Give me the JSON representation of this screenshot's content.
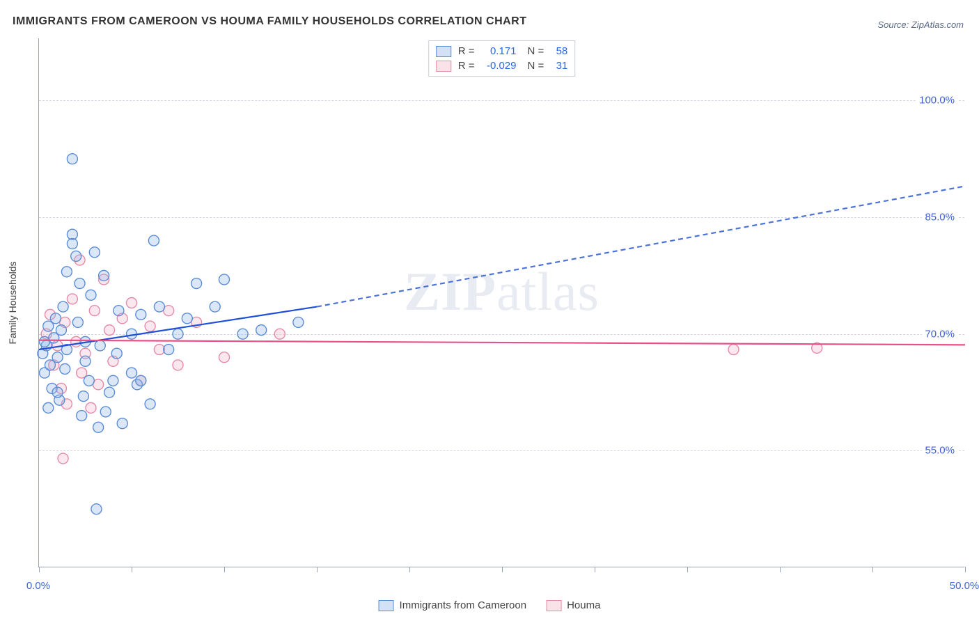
{
  "title": "IMMIGRANTS FROM CAMEROON VS HOUMA FAMILY HOUSEHOLDS CORRELATION CHART",
  "source": "Source: ZipAtlas.com",
  "watermark_bold": "ZIP",
  "watermark_rest": "atlas",
  "chart": {
    "type": "scatter",
    "background_color": "#ffffff",
    "grid_color": "#d2d7df",
    "axis_color": "#9aa4b8",
    "axis_label_color": "#3b63d6",
    "y_axis_title": "Family Households",
    "y_axis_title_fontsize": 14,
    "title_fontsize": 16,
    "xlim": [
      0,
      50
    ],
    "ylim": [
      40,
      108
    ],
    "x_ticks": [
      0,
      5,
      10,
      15,
      20,
      25,
      30,
      35,
      40,
      45,
      50
    ],
    "x_tick_labels": [
      {
        "pos": 0,
        "label": "0.0%"
      },
      {
        "pos": 50,
        "label": "50.0%"
      }
    ],
    "y_grid": [
      55,
      70,
      85,
      100
    ],
    "y_tick_labels": [
      {
        "pos": 55,
        "label": "55.0%"
      },
      {
        "pos": 70,
        "label": "70.0%"
      },
      {
        "pos": 85,
        "label": "85.0%"
      },
      {
        "pos": 100,
        "label": "100.0%"
      }
    ],
    "marker_radius": 7.5,
    "marker_stroke_width": 1.4,
    "marker_fill_opacity": 0.32,
    "series": [
      {
        "name": "Immigrants from Cameroon",
        "color_stroke": "#5a8dd6",
        "color_fill": "#8fb3e6",
        "points": [
          [
            0.2,
            67.5
          ],
          [
            0.3,
            65.0
          ],
          [
            0.4,
            68.5
          ],
          [
            0.5,
            71.0
          ],
          [
            0.5,
            60.5
          ],
          [
            0.6,
            66.0
          ],
          [
            0.7,
            63.0
          ],
          [
            0.8,
            69.5
          ],
          [
            0.9,
            72.0
          ],
          [
            1.0,
            67.0
          ],
          [
            1.1,
            61.5
          ],
          [
            1.2,
            70.5
          ],
          [
            1.3,
            73.5
          ],
          [
            1.4,
            65.5
          ],
          [
            1.5,
            78.0
          ],
          [
            1.5,
            68.0
          ],
          [
            1.8,
            82.8
          ],
          [
            1.8,
            81.6
          ],
          [
            1.8,
            92.5
          ],
          [
            2.0,
            80.0
          ],
          [
            2.1,
            71.5
          ],
          [
            2.2,
            76.5
          ],
          [
            2.3,
            59.5
          ],
          [
            2.4,
            62.0
          ],
          [
            2.5,
            66.5
          ],
          [
            2.5,
            69.0
          ],
          [
            2.7,
            64.0
          ],
          [
            2.8,
            75.0
          ],
          [
            3.0,
            80.5
          ],
          [
            3.1,
            47.5
          ],
          [
            3.2,
            58.0
          ],
          [
            3.3,
            68.5
          ],
          [
            3.5,
            77.5
          ],
          [
            3.6,
            60.0
          ],
          [
            3.8,
            62.5
          ],
          [
            4.0,
            64.0
          ],
          [
            4.2,
            67.5
          ],
          [
            4.3,
            73.0
          ],
          [
            4.5,
            58.5
          ],
          [
            5.0,
            65.0
          ],
          [
            5.0,
            70.0
          ],
          [
            5.3,
            63.5
          ],
          [
            5.5,
            72.5
          ],
          [
            5.5,
            64.0
          ],
          [
            6.0,
            61.0
          ],
          [
            6.2,
            82.0
          ],
          [
            6.5,
            73.5
          ],
          [
            7.0,
            68.0
          ],
          [
            7.5,
            70.0
          ],
          [
            8.0,
            72.0
          ],
          [
            8.5,
            76.5
          ],
          [
            9.5,
            73.5
          ],
          [
            10.0,
            77.0
          ],
          [
            11.0,
            70.0
          ],
          [
            12.0,
            70.5
          ],
          [
            14.0,
            71.5
          ],
          [
            1.0,
            62.5
          ],
          [
            0.3,
            69.0
          ]
        ],
        "trend": {
          "solid_from": [
            0,
            68.0
          ],
          "solid_to": [
            15,
            73.5
          ],
          "dashed_to": [
            50,
            89.0
          ],
          "solid_color": "#1f4fd6",
          "dashed_color": "#4a72d8",
          "width": 2.2,
          "dash": "7,5"
        }
      },
      {
        "name": "Houma",
        "color_stroke": "#e48ba8",
        "color_fill": "#f3b6c9",
        "points": [
          [
            0.4,
            70.0
          ],
          [
            0.6,
            72.5
          ],
          [
            0.8,
            66.0
          ],
          [
            1.0,
            68.5
          ],
          [
            1.2,
            63.0
          ],
          [
            1.4,
            71.5
          ],
          [
            1.5,
            61.0
          ],
          [
            1.8,
            74.5
          ],
          [
            2.0,
            69.0
          ],
          [
            2.2,
            79.5
          ],
          [
            2.3,
            65.0
          ],
          [
            2.5,
            67.5
          ],
          [
            2.8,
            60.5
          ],
          [
            3.0,
            73.0
          ],
          [
            3.2,
            63.5
          ],
          [
            3.5,
            77.0
          ],
          [
            3.8,
            70.5
          ],
          [
            4.0,
            66.5
          ],
          [
            4.5,
            72.0
          ],
          [
            5.0,
            74.0
          ],
          [
            5.5,
            64.0
          ],
          [
            6.0,
            71.0
          ],
          [
            6.5,
            68.0
          ],
          [
            7.0,
            73.0
          ],
          [
            7.5,
            66.0
          ],
          [
            8.5,
            71.5
          ],
          [
            10.0,
            67.0
          ],
          [
            13.0,
            70.0
          ],
          [
            1.3,
            54.0
          ],
          [
            37.5,
            68.0
          ],
          [
            42.0,
            68.2
          ]
        ],
        "trend": {
          "solid_from": [
            0,
            69.2
          ],
          "solid_to": [
            50,
            68.6
          ],
          "solid_color": "#e65288",
          "width": 2.2
        }
      }
    ],
    "legend_top": [
      {
        "swatch_fill": "#8fb3e6",
        "swatch_stroke": "#5a8dd6",
        "r_label": "R =",
        "r_value": "0.171",
        "n_label": "N =",
        "n_value": "58"
      },
      {
        "swatch_fill": "#f3b6c9",
        "swatch_stroke": "#e48ba8",
        "r_label": "R =",
        "r_value": "-0.029",
        "n_label": "N =",
        "n_value": "31"
      }
    ],
    "legend_bottom": [
      {
        "swatch_fill": "#8fb3e6",
        "swatch_stroke": "#5a8dd6",
        "label": "Immigrants from Cameroon"
      },
      {
        "swatch_fill": "#f3b6c9",
        "swatch_stroke": "#e48ba8",
        "label": "Houma"
      }
    ]
  }
}
